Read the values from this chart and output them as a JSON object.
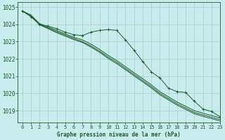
{
  "bg_color": "#c8eced",
  "grid_color": "#aacccc",
  "line_color": "#1a5c2a",
  "xlabel": "Graphe pression niveau de la mer (hPa)",
  "xlim": [
    -0.5,
    23
  ],
  "ylim": [
    1018.3,
    1025.3
  ],
  "yticks": [
    1019,
    1020,
    1021,
    1022,
    1023,
    1024,
    1025
  ],
  "xticks": [
    0,
    1,
    2,
    3,
    4,
    5,
    6,
    7,
    8,
    9,
    10,
    11,
    12,
    13,
    14,
    15,
    16,
    17,
    18,
    19,
    20,
    21,
    22,
    23
  ],
  "smooth1_x": [
    0,
    1,
    2,
    3,
    4,
    5,
    6,
    7,
    8,
    9,
    10,
    11,
    12,
    13,
    14,
    15,
    16,
    17,
    18,
    19,
    20,
    21,
    22,
    23
  ],
  "smooth1_y": [
    1024.78,
    1024.55,
    1024.05,
    1023.85,
    1023.65,
    1023.45,
    1023.25,
    1023.1,
    1022.85,
    1022.55,
    1022.2,
    1021.9,
    1021.55,
    1021.2,
    1020.85,
    1020.5,
    1020.1,
    1019.8,
    1019.5,
    1019.25,
    1019.0,
    1018.85,
    1018.72,
    1018.58
  ],
  "smooth2_x": [
    0,
    1,
    2,
    3,
    4,
    5,
    6,
    7,
    8,
    9,
    10,
    11,
    12,
    13,
    14,
    15,
    16,
    17,
    18,
    19,
    20,
    21,
    22,
    23
  ],
  "smooth2_y": [
    1024.78,
    1024.52,
    1024.0,
    1023.8,
    1023.58,
    1023.38,
    1023.18,
    1023.0,
    1022.75,
    1022.45,
    1022.1,
    1021.8,
    1021.45,
    1021.1,
    1020.75,
    1020.4,
    1020.0,
    1019.7,
    1019.4,
    1019.15,
    1018.9,
    1018.75,
    1018.62,
    1018.48
  ],
  "smooth3_x": [
    0,
    1,
    2,
    3,
    4,
    5,
    6,
    7,
    8,
    9,
    10,
    11,
    12,
    13,
    14,
    15,
    16,
    17,
    18,
    19,
    20,
    21,
    22,
    23
  ],
  "smooth3_y": [
    1024.78,
    1024.5,
    1023.98,
    1023.75,
    1023.52,
    1023.32,
    1023.12,
    1022.95,
    1022.68,
    1022.38,
    1022.02,
    1021.72,
    1021.37,
    1021.02,
    1020.67,
    1020.32,
    1019.92,
    1019.62,
    1019.32,
    1019.07,
    1018.82,
    1018.67,
    1018.54,
    1018.4
  ],
  "marked_x": [
    0,
    1,
    2,
    3,
    4,
    5,
    6,
    7,
    8,
    9,
    10,
    11,
    12,
    13,
    14,
    15,
    16,
    17,
    18,
    19,
    20,
    21,
    22,
    23
  ],
  "marked_y": [
    1024.78,
    1024.45,
    1024.0,
    1023.9,
    1023.75,
    1023.55,
    1023.4,
    1023.35,
    1023.55,
    1023.65,
    1023.7,
    1023.65,
    1023.1,
    1022.5,
    1021.85,
    1021.25,
    1020.9,
    1020.3,
    1020.1,
    1020.05,
    1019.55,
    1019.1,
    1018.95,
    1018.65
  ]
}
